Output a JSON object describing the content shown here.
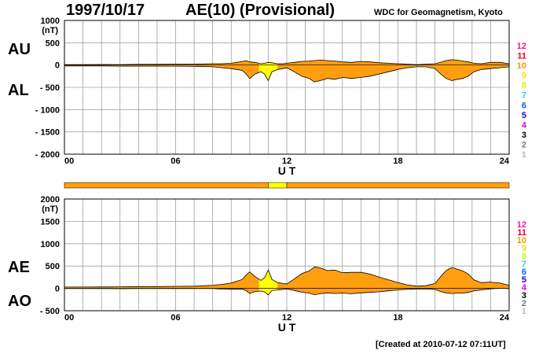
{
  "header": {
    "date": "1997/10/17",
    "title": "AE(10) (Provisional)",
    "credit": "WDC for Geomagnetism, Kyoto"
  },
  "footer": {
    "created": "[Created at 2010-07-12 07:11UT]"
  },
  "colors": {
    "fill_main": "#ff9e0f",
    "fill_highlight": "#ffff00",
    "grid": "#a0a0a0",
    "line": "#000000"
  },
  "scale": [
    {
      "label": "12",
      "color": "#ff1493"
    },
    {
      "label": "11",
      "color": "#e8001c"
    },
    {
      "label": "10",
      "color": "#ff9900"
    },
    {
      "label": "9",
      "color": "#ffdd00"
    },
    {
      "label": "8",
      "color": "#c8ff00"
    },
    {
      "label": "7",
      "color": "#33ccff"
    },
    {
      "label": "6",
      "color": "#0066ff"
    },
    {
      "label": "5",
      "color": "#2200cc"
    },
    {
      "label": "4",
      "color": "#dd00dd"
    },
    {
      "label": "3",
      "color": "#000000"
    },
    {
      "label": "2",
      "color": "#777777"
    },
    {
      "label": "1",
      "color": "#bbbbbb"
    }
  ],
  "station_bar": [
    {
      "from": 0,
      "to": 11,
      "value": 10
    },
    {
      "from": 11,
      "to": 12,
      "value": 9
    },
    {
      "from": 12,
      "to": 24,
      "value": 10
    }
  ],
  "chart_data": [
    {
      "type": "area",
      "series_labels": [
        "AU",
        "AL"
      ],
      "unit_label": "(nT)",
      "xlabel": "U T",
      "xlim": [
        0,
        24
      ],
      "ylim": [
        -2000,
        1000
      ],
      "ytick_labels": [
        "1000",
        "500",
        "0",
        "- 500",
        "- 1000",
        "- 1500",
        "- 2000"
      ],
      "ytick_values": [
        1000,
        500,
        0,
        -500,
        -1000,
        -1500,
        -2000
      ],
      "xtick_labels": [
        "00",
        "06",
        "12",
        "18",
        "24"
      ],
      "xtick_values": [
        0,
        6,
        12,
        18,
        24
      ],
      "grid": true,
      "highlight_range": [
        10.5,
        11.5
      ],
      "x": [
        0,
        1,
        2,
        3,
        4,
        5,
        6,
        7,
        8,
        8.5,
        9,
        9.3,
        9.6,
        9.8,
        10,
        10.3,
        10.6,
        10.8,
        11,
        11.2,
        11.5,
        11.8,
        12,
        12.4,
        12.8,
        13.2,
        13.5,
        13.8,
        14.2,
        14.6,
        15,
        15.5,
        16,
        16.5,
        17,
        17.5,
        18,
        18.5,
        19,
        19.5,
        20,
        20.3,
        20.6,
        20.9,
        21.2,
        21.5,
        21.8,
        22.1,
        22.5,
        23,
        23.5,
        24
      ],
      "au": [
        10,
        10,
        12,
        10,
        15,
        15,
        20,
        20,
        30,
        30,
        40,
        60,
        80,
        100,
        70,
        60,
        30,
        40,
        60,
        50,
        30,
        30,
        40,
        60,
        80,
        90,
        100,
        110,
        100,
        90,
        70,
        60,
        80,
        70,
        50,
        40,
        30,
        20,
        10,
        20,
        30,
        60,
        100,
        120,
        110,
        90,
        70,
        40,
        30,
        60,
        60,
        30
      ],
      "al": [
        -20,
        -20,
        -20,
        -25,
        -25,
        -25,
        -25,
        -30,
        -40,
        -60,
        -80,
        -100,
        -120,
        -200,
        -300,
        -200,
        -150,
        -200,
        -350,
        -150,
        -100,
        -80,
        -60,
        -150,
        -250,
        -300,
        -380,
        -350,
        -300,
        -320,
        -280,
        -300,
        -280,
        -250,
        -200,
        -150,
        -100,
        -60,
        -40,
        -40,
        -80,
        -200,
        -300,
        -350,
        -320,
        -300,
        -250,
        -150,
        -100,
        -80,
        -60,
        -40
      ]
    },
    {
      "type": "area",
      "series_labels": [
        "AE",
        "AO"
      ],
      "unit_label": "(nT)",
      "xlabel": "U T",
      "xlim": [
        0,
        24
      ],
      "ylim": [
        -500,
        2000
      ],
      "ytick_labels": [
        "2000",
        "1500",
        "1000",
        "500",
        "0",
        "- 500"
      ],
      "ytick_values": [
        2000,
        1500,
        1000,
        500,
        0,
        -500
      ],
      "xtick_labels": [
        "00",
        "06",
        "12",
        "18",
        "24"
      ],
      "xtick_values": [
        0,
        6,
        12,
        18,
        24
      ],
      "grid": true,
      "highlight_range": [
        10.5,
        11.5
      ],
      "x": [
        0,
        1,
        2,
        3,
        4,
        5,
        6,
        7,
        8,
        8.5,
        9,
        9.3,
        9.6,
        9.8,
        10,
        10.3,
        10.6,
        10.8,
        11,
        11.2,
        11.5,
        11.8,
        12,
        12.4,
        12.8,
        13.2,
        13.5,
        13.8,
        14.2,
        14.6,
        15,
        15.5,
        16,
        16.5,
        17,
        17.5,
        18,
        18.5,
        19,
        19.5,
        20,
        20.3,
        20.6,
        20.9,
        21.2,
        21.5,
        21.8,
        22.1,
        22.5,
        23,
        23.5,
        24
      ],
      "ae": [
        30,
        30,
        32,
        35,
        40,
        40,
        45,
        50,
        70,
        90,
        120,
        160,
        200,
        300,
        370,
        260,
        180,
        240,
        410,
        200,
        130,
        110,
        100,
        210,
        330,
        390,
        480,
        460,
        400,
        410,
        350,
        360,
        360,
        320,
        250,
        190,
        130,
        80,
        50,
        60,
        110,
        260,
        400,
        470,
        430,
        390,
        320,
        190,
        130,
        140,
        120,
        70
      ],
      "ao": [
        -5,
        -5,
        -4,
        -7,
        -5,
        -5,
        -3,
        -5,
        -5,
        -15,
        -20,
        -20,
        -20,
        -50,
        -115,
        -70,
        -60,
        -80,
        -145,
        -50,
        -35,
        -25,
        -10,
        -45,
        -85,
        -105,
        -140,
        -120,
        -100,
        -115,
        -105,
        -120,
        -100,
        -90,
        -75,
        -55,
        -35,
        -20,
        -15,
        -10,
        -25,
        -70,
        -100,
        -115,
        -105,
        -105,
        -90,
        -55,
        -35,
        -10,
        0,
        -5
      ]
    }
  ]
}
